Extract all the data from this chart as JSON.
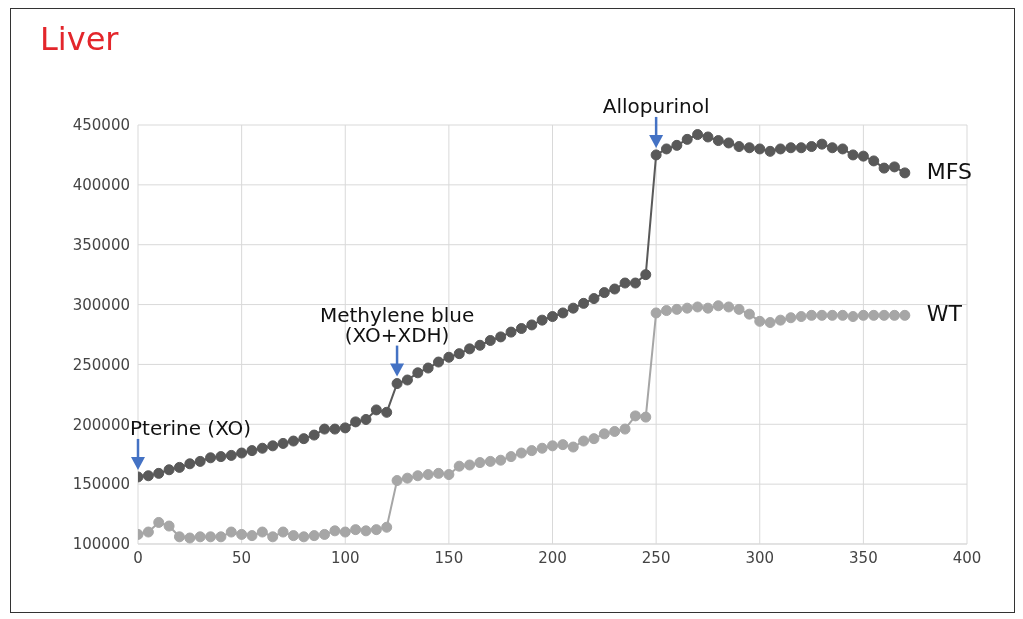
{
  "chart_data": {
    "type": "line",
    "title": "Liver",
    "x": [
      0,
      5,
      10,
      15,
      20,
      25,
      30,
      35,
      40,
      45,
      50,
      55,
      60,
      65,
      70,
      75,
      80,
      85,
      90,
      95,
      100,
      105,
      110,
      115,
      120,
      125,
      130,
      135,
      140,
      145,
      150,
      155,
      160,
      165,
      170,
      175,
      180,
      185,
      190,
      195,
      200,
      205,
      210,
      215,
      220,
      225,
      230,
      235,
      240,
      245,
      250,
      255,
      260,
      265,
      270,
      275,
      280,
      285,
      290,
      295,
      300,
      305,
      310,
      315,
      320,
      325,
      330,
      335,
      340,
      345,
      350,
      355,
      360,
      365,
      370
    ],
    "series": [
      {
        "name": "MFS",
        "color": "#595959",
        "values": [
          156000,
          157000,
          159000,
          162000,
          164000,
          167000,
          169000,
          172000,
          173000,
          174000,
          176000,
          178000,
          180000,
          182000,
          184000,
          186000,
          188000,
          191000,
          196000,
          196000,
          197000,
          202000,
          204000,
          212000,
          210000,
          234000,
          237000,
          243000,
          247000,
          252000,
          256000,
          259000,
          263000,
          266000,
          270000,
          273000,
          277000,
          280000,
          283000,
          287000,
          290000,
          293000,
          297000,
          301000,
          305000,
          310000,
          313000,
          318000,
          318000,
          325000,
          425000,
          430000,
          433000,
          438000,
          442000,
          440000,
          437000,
          435000,
          432000,
          431000,
          430000,
          428000,
          430000,
          431000,
          431000,
          432000,
          434000,
          431000,
          430000,
          425000,
          424000,
          420000,
          414000,
          415000,
          410000
        ]
      },
      {
        "name": "WT",
        "color": "#a6a6a6",
        "values": [
          108000,
          110000,
          118000,
          115000,
          106000,
          105000,
          106000,
          106000,
          106000,
          110000,
          108000,
          107000,
          110000,
          106000,
          110000,
          107000,
          106000,
          107000,
          108000,
          111000,
          110000,
          112000,
          111000,
          112000,
          114000,
          153000,
          155000,
          157000,
          158000,
          159000,
          158000,
          165000,
          166000,
          168000,
          169000,
          170000,
          173000,
          176000,
          178000,
          180000,
          182000,
          183000,
          181000,
          186000,
          188000,
          192000,
          194000,
          196000,
          207000,
          206000,
          293000,
          295000,
          296000,
          297000,
          298000,
          297000,
          299000,
          298000,
          296000,
          292000,
          286000,
          285000,
          287000,
          289000,
          290000,
          291000,
          291000,
          291000,
          291000,
          290000,
          291000,
          291000,
          291000,
          291000,
          291000
        ]
      }
    ],
    "xlim": [
      0,
      400
    ],
    "xticks": [
      0,
      50,
      100,
      150,
      200,
      250,
      300,
      350,
      400
    ],
    "ylim": [
      100000,
      450000
    ],
    "yticks": [
      100000,
      150000,
      200000,
      250000,
      300000,
      350000,
      400000,
      450000
    ],
    "grid": true,
    "marker": "circle",
    "line_style": "solid",
    "annotations": [
      {
        "text": "Pterine (XO)",
        "x": 0,
        "y": 156000
      },
      {
        "text": "Methylene blue (XO+XDH)",
        "x": 125,
        "y": 234000
      },
      {
        "text": "Allopurinol",
        "x": 250,
        "y": 425000
      }
    ]
  }
}
